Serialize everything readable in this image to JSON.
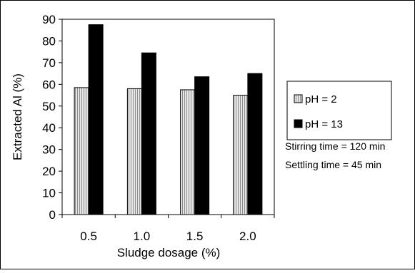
{
  "chart_data": {
    "type": "bar",
    "categories": [
      "0.5",
      "1.0",
      "1.5",
      "2.0"
    ],
    "series": [
      {
        "name": "pH = 2",
        "values": [
          58.5,
          58.0,
          57.5,
          55.0
        ],
        "color": "#d0d0d0",
        "pattern": "vertical-stripes"
      },
      {
        "name": "pH = 13",
        "values": [
          87.5,
          74.5,
          63.5,
          65.0
        ],
        "color": "#000000",
        "pattern": "solid"
      }
    ],
    "title": "",
    "xlabel": "Sludge dosage (%)",
    "ylabel": "Extracted Al (%)",
    "ylim": [
      0,
      90
    ],
    "yticks": [
      "0",
      "10",
      "20",
      "30",
      "40",
      "50",
      "60",
      "70",
      "80",
      "90"
    ],
    "grid": false,
    "legend": "right",
    "annotations": [
      "Stirring time = 120 min",
      "Settling time = 45 min"
    ]
  }
}
